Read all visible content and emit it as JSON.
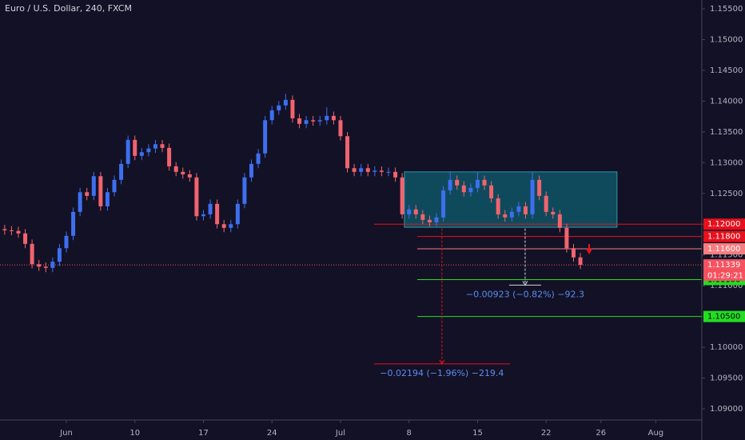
{
  "chart_data": {
    "type": "candlestick",
    "title": "Euro / U.S. Dollar, 240, FXCM",
    "x": [
      -4.5,
      -4,
      -3.5,
      -3,
      -2.5,
      -2,
      -1.5,
      -1,
      -0.5,
      0,
      0.5,
      1,
      1.5,
      2,
      2.5,
      3,
      3.5,
      4,
      4.5,
      5,
      5.5,
      6,
      6.5,
      7,
      7.5,
      8,
      8.5,
      9,
      9.5,
      10,
      10.5,
      11,
      11.5,
      12,
      12.5,
      13,
      13.5,
      14,
      14.5,
      15,
      15.5,
      16,
      16.5,
      17,
      17.5,
      18,
      18.5,
      19,
      19.5,
      20,
      20.5,
      21,
      21.5,
      22,
      22.5,
      23,
      23.5,
      24,
      24.5,
      25,
      25.5,
      26,
      26.5,
      27,
      27.5,
      28,
      28.5,
      29,
      29.5,
      30,
      30.5,
      31,
      31.5,
      32,
      32.5,
      33,
      33.5,
      34,
      34.5,
      35,
      35.5,
      36,
      36.5,
      37,
      37.5
    ],
    "open": [
      1.1192,
      1.119,
      1.1189,
      1.1185,
      1.1168,
      1.1135,
      1.1131,
      1.1129,
      1.1139,
      1.1161,
      1.1181,
      1.122,
      1.1252,
      1.1246,
      1.1278,
      1.1229,
      1.1252,
      1.1272,
      1.1298,
      1.1337,
      1.1311,
      1.1317,
      1.1323,
      1.133,
      1.1324,
      1.1294,
      1.1285,
      1.1281,
      1.1276,
      1.1213,
      1.1216,
      1.1233,
      1.12,
      1.1194,
      1.12,
      1.1233,
      1.1276,
      1.1298,
      1.1315,
      1.1369,
      1.1385,
      1.1393,
      1.1402,
      1.1372,
      1.1363,
      1.1369,
      1.1367,
      1.1369,
      1.1376,
      1.1369,
      1.1343,
      1.1291,
      1.1285,
      1.1291,
      1.1285,
      1.1287,
      1.1285,
      1.1285,
      1.1276,
      1.1216,
      1.1224,
      1.1216,
      1.1207,
      1.1203,
      1.1211,
      1.1255,
      1.1272,
      1.1263,
      1.1252,
      1.1259,
      1.1272,
      1.1263,
      1.1242,
      1.1216,
      1.1211,
      1.122,
      1.1229,
      1.1216,
      1.1272,
      1.1246,
      1.122,
      1.1216,
      1.1194,
      1.1161,
      1.1146
    ],
    "high": [
      1.1199,
      1.1197,
      1.1196,
      1.1192,
      1.1175,
      1.1142,
      1.1138,
      1.1146,
      1.1168,
      1.1188,
      1.1227,
      1.1259,
      1.1259,
      1.1285,
      1.1285,
      1.1259,
      1.1279,
      1.1305,
      1.1344,
      1.1344,
      1.1324,
      1.133,
      1.1337,
      1.1337,
      1.1331,
      1.1301,
      1.1292,
      1.1288,
      1.1283,
      1.1223,
      1.124,
      1.124,
      1.1207,
      1.1207,
      1.124,
      1.1283,
      1.1305,
      1.1322,
      1.1376,
      1.1392,
      1.14,
      1.1412,
      1.1409,
      1.1379,
      1.1376,
      1.1376,
      1.1376,
      1.139,
      1.1383,
      1.1376,
      1.135,
      1.1298,
      1.1298,
      1.1298,
      1.1294,
      1.1294,
      1.1292,
      1.1292,
      1.1283,
      1.1231,
      1.1231,
      1.1223,
      1.1214,
      1.1218,
      1.1262,
      1.1286,
      1.1279,
      1.127,
      1.1266,
      1.1284,
      1.1279,
      1.127,
      1.1249,
      1.1223,
      1.1227,
      1.1236,
      1.1236,
      1.1284,
      1.1279,
      1.1253,
      1.1227,
      1.1223,
      1.1201,
      1.1168,
      1.1153
    ],
    "low": [
      1.1183,
      1.1182,
      1.1178,
      1.1161,
      1.1128,
      1.1124,
      1.1122,
      1.1122,
      1.1132,
      1.1154,
      1.1174,
      1.1213,
      1.1239,
      1.1239,
      1.1222,
      1.1222,
      1.1245,
      1.1265,
      1.1291,
      1.1304,
      1.1304,
      1.131,
      1.1316,
      1.1317,
      1.1287,
      1.1278,
      1.1274,
      1.1269,
      1.1206,
      1.1206,
      1.1209,
      1.1193,
      1.1187,
      1.1187,
      1.1193,
      1.1226,
      1.1269,
      1.1291,
      1.1308,
      1.1362,
      1.1378,
      1.1386,
      1.1365,
      1.1356,
      1.1356,
      1.136,
      1.136,
      1.1362,
      1.1362,
      1.1336,
      1.1284,
      1.1278,
      1.1278,
      1.1278,
      1.1278,
      1.1278,
      1.1278,
      1.1269,
      1.1209,
      1.1209,
      1.1209,
      1.12,
      1.1196,
      1.1196,
      1.1204,
      1.1248,
      1.1256,
      1.1245,
      1.1245,
      1.1252,
      1.1256,
      1.1235,
      1.1209,
      1.1204,
      1.1204,
      1.1213,
      1.1209,
      1.1209,
      1.1239,
      1.1213,
      1.1209,
      1.1187,
      1.1154,
      1.1139,
      1.1127
    ],
    "close": [
      1.119,
      1.1189,
      1.1185,
      1.1168,
      1.1135,
      1.1131,
      1.1129,
      1.1139,
      1.1161,
      1.1181,
      1.122,
      1.1252,
      1.1246,
      1.1278,
      1.1229,
      1.1252,
      1.1272,
      1.1298,
      1.1337,
      1.1311,
      1.1317,
      1.1323,
      1.133,
      1.1324,
      1.1294,
      1.1285,
      1.1281,
      1.1276,
      1.1213,
      1.1216,
      1.1233,
      1.12,
      1.1194,
      1.12,
      1.1233,
      1.1276,
      1.1298,
      1.1315,
      1.1369,
      1.1385,
      1.1393,
      1.1402,
      1.1372,
      1.1363,
      1.1369,
      1.1367,
      1.1369,
      1.1376,
      1.1369,
      1.1343,
      1.1291,
      1.1285,
      1.1291,
      1.1285,
      1.1287,
      1.1285,
      1.1285,
      1.1276,
      1.1216,
      1.1224,
      1.1216,
      1.1207,
      1.1203,
      1.1211,
      1.1255,
      1.1272,
      1.1263,
      1.1252,
      1.1259,
      1.1272,
      1.1263,
      1.1242,
      1.1216,
      1.1211,
      1.122,
      1.1229,
      1.1216,
      1.1272,
      1.1246,
      1.122,
      1.1216,
      1.1194,
      1.1161,
      1.1146,
      1.1134
    ],
    "up_color": "#3d6ff0",
    "down_color": "#f0646e",
    "xlim": [
      -4.84,
      46.36
    ],
    "xticks": [
      {
        "value": 0,
        "label": "Jun"
      },
      {
        "value": 5,
        "label": "10"
      },
      {
        "value": 10,
        "label": "17"
      },
      {
        "value": 15,
        "label": "24"
      },
      {
        "value": 20,
        "label": "Jul"
      },
      {
        "value": 25,
        "label": "8"
      },
      {
        "value": 30,
        "label": "15"
      },
      {
        "value": 35,
        "label": "22"
      },
      {
        "value": 39,
        "label": "26"
      },
      {
        "value": 43,
        "label": "Aug"
      }
    ],
    "ylim": [
      1.08818,
      1.15643
    ],
    "yticks": [
      {
        "value": 1.155,
        "label": "1.15500"
      },
      {
        "value": 1.15,
        "label": "1.15000"
      },
      {
        "value": 1.145,
        "label": "1.14500"
      },
      {
        "value": 1.14,
        "label": "1.14000"
      },
      {
        "value": 1.135,
        "label": "1.13500"
      },
      {
        "value": 1.13,
        "label": "1.13000"
      },
      {
        "value": 1.125,
        "label": "1.12500"
      },
      {
        "value": 1.12,
        "label": "1.12000"
      },
      {
        "value": 1.115,
        "label": "1.11500"
      },
      {
        "value": 1.11,
        "label": "1.11000"
      },
      {
        "value": 1.105,
        "label": "1.10500"
      },
      {
        "value": 1.1,
        "label": "1.10000"
      },
      {
        "value": 1.095,
        "label": "1.09500"
      },
      {
        "value": 1.09,
        "label": "1.09000"
      }
    ],
    "zone": {
      "start": 24.66,
      "end": 40.17,
      "top": 1.1285,
      "bottom": 1.1195,
      "color": "#0f4a5c"
    },
    "levels": [
      {
        "value": 1.12,
        "label": "1.12000",
        "color": "#e8101c",
        "start": 22.45
      },
      {
        "value": 1.118,
        "label": "1.11800",
        "color": "#e8101c",
        "start": 25.6
      },
      {
        "value": 1.116,
        "label": "1.11600",
        "color": "#f77c80",
        "start": 25.6
      },
      {
        "value": 1.111,
        "label": "1.11100",
        "color": "#22dd22",
        "start": 25.6
      },
      {
        "value": 1.105,
        "label": "1.10500",
        "color": "#22dd22",
        "start": 25.6
      }
    ],
    "price": {
      "value": 1.11339,
      "label": "1.11339",
      "countdown": "01:29:21",
      "color": "#f7525f"
    },
    "measures": [
      {
        "from": 1.1193,
        "to": 1.1101,
        "at": 33.47,
        "label": "−0.00923 (−0.82%) −92.3",
        "color": "#d1d4dc"
      },
      {
        "from": 1.1193,
        "to": 1.0973,
        "at": 27.4,
        "label": "−0.02194 (−1.96%) −219.4",
        "color": "#e8101c"
      }
    ]
  }
}
